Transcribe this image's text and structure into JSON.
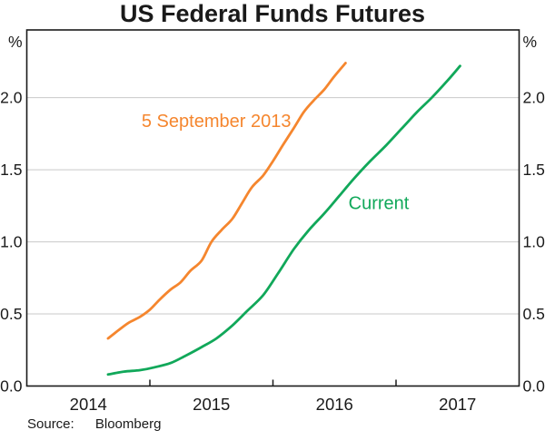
{
  "source": {
    "label": "Source:",
    "value": "Bloomberg"
  },
  "colors": {
    "orange_series": "#F5862E",
    "green_series": "#11A85A",
    "gridline": "#c9c9c9",
    "axis_frame": "#1a1a1a",
    "text": "#1a1a1a"
  },
  "axes": {
    "unit_left": "%",
    "unit_right": "%",
    "yticks": [
      0.0,
      0.5,
      1.0,
      1.5,
      2.0
    ],
    "ytick_labels": [
      "0.0",
      "0.5",
      "1.0",
      "1.5",
      "2.0"
    ],
    "xtick_labels": [
      "2014",
      "2015",
      "2016",
      "2017"
    ],
    "year_centers": [
      2014.5,
      2015.5,
      2016.5,
      2017.5
    ],
    "year_boundaries": [
      2015,
      2016,
      2017
    ]
  },
  "chart_data": {
    "type": "line",
    "title": "US Federal Funds Futures",
    "ylabel": "%",
    "xlabel": "",
    "xlim": [
      2014,
      2018
    ],
    "ylim": [
      0,
      2.47
    ],
    "grid": "horizontal",
    "legend_position": "inline-annotations",
    "series": [
      {
        "name": "5 September 2013",
        "color": "#F5862E",
        "label_pos": {
          "x": 2015.54,
          "y": 1.84
        },
        "x": [
          2014.66,
          2014.75,
          2014.83,
          2014.92,
          2015.0,
          2015.08,
          2015.17,
          2015.25,
          2015.33,
          2015.42,
          2015.5,
          2015.58,
          2015.67,
          2015.75,
          2015.83,
          2015.92,
          2016.0,
          2016.08,
          2016.17,
          2016.25,
          2016.33,
          2016.42,
          2016.5,
          2016.59
        ],
        "values": [
          0.33,
          0.39,
          0.44,
          0.48,
          0.53,
          0.6,
          0.67,
          0.72,
          0.8,
          0.87,
          1.0,
          1.08,
          1.16,
          1.27,
          1.38,
          1.46,
          1.56,
          1.67,
          1.79,
          1.9,
          1.98,
          2.06,
          2.15,
          2.24
        ]
      },
      {
        "name": "Current",
        "color": "#11A85A",
        "label_pos": {
          "x": 2016.86,
          "y": 1.27
        },
        "x": [
          2014.66,
          2014.79,
          2014.92,
          2015.04,
          2015.17,
          2015.29,
          2015.42,
          2015.54,
          2015.67,
          2015.79,
          2015.92,
          2016.04,
          2016.17,
          2016.29,
          2016.42,
          2016.54,
          2016.67,
          2016.79,
          2016.92,
          2017.04,
          2017.17,
          2017.29,
          2017.42,
          2017.52
        ],
        "values": [
          0.08,
          0.1,
          0.11,
          0.13,
          0.16,
          0.21,
          0.27,
          0.33,
          0.42,
          0.52,
          0.63,
          0.78,
          0.95,
          1.08,
          1.2,
          1.32,
          1.45,
          1.56,
          1.67,
          1.78,
          1.9,
          2.0,
          2.12,
          2.22
        ]
      }
    ]
  }
}
